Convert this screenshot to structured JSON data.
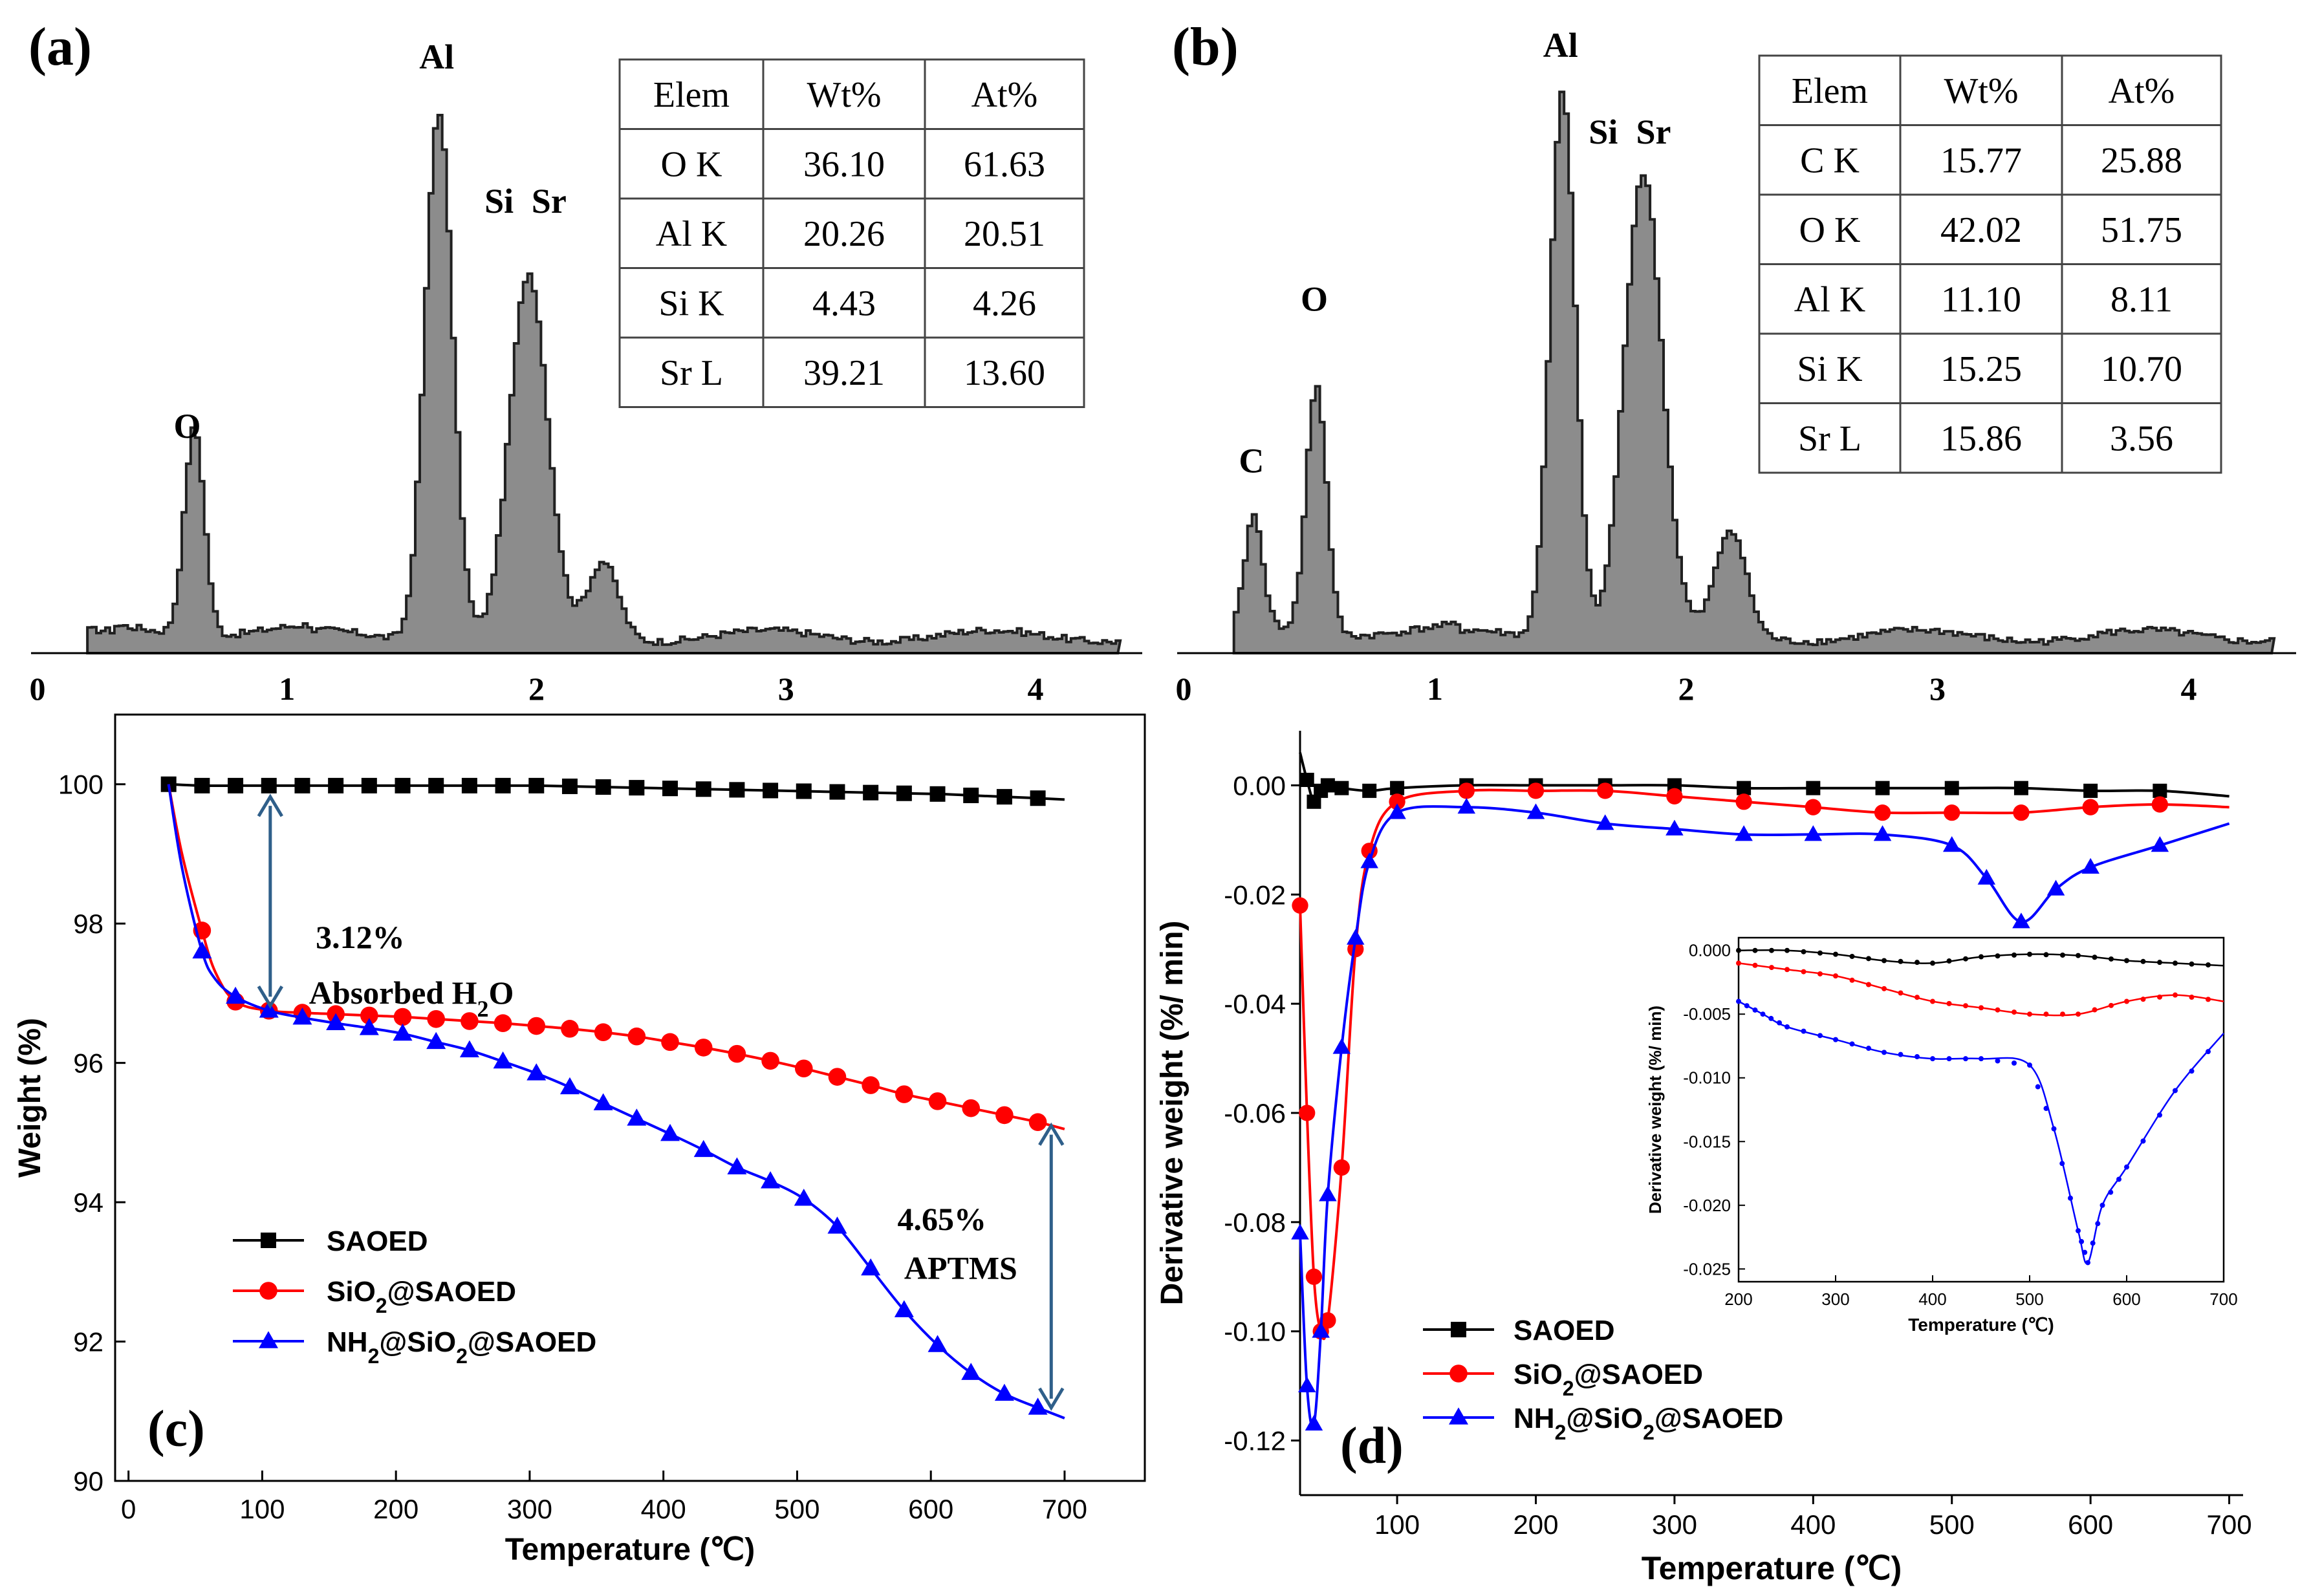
{
  "chart_data": [
    {
      "panel": "(a)",
      "type": "area",
      "xticks": [
        "0",
        "1",
        "2",
        "3",
        "4"
      ],
      "xlim": [
        0,
        4.35
      ],
      "peak_labels": [
        {
          "text": "O",
          "x": 0.6,
          "y": 0.36
        },
        {
          "text": "Al",
          "x": 1.6,
          "y": 1.0
        },
        {
          "text": "Si",
          "x": 1.85,
          "y": 0.75
        },
        {
          "text": "Sr",
          "x": 2.05,
          "y": 0.75
        }
      ],
      "peaks": [
        {
          "x": 0.62,
          "h": 0.36,
          "w": 0.04
        },
        {
          "x": 1.6,
          "h": 0.92,
          "w": 0.055
        },
        {
          "x": 1.96,
          "h": 0.62,
          "w": 0.075
        },
        {
          "x": 2.26,
          "h": 0.13,
          "w": 0.06
        }
      ],
      "table": {
        "headers": [
          "Elem",
          "Wt%",
          "At%"
        ],
        "rows": [
          [
            "O K",
            "36.10",
            "61.63"
          ],
          [
            "Al K",
            "20.26",
            "20.51"
          ],
          [
            "Si K",
            "4.43",
            "4.26"
          ],
          [
            "Sr L",
            "39.21",
            "13.60"
          ]
        ]
      }
    },
    {
      "panel": "(b)",
      "type": "area",
      "xticks": [
        "0",
        "1",
        "2",
        "3",
        "4"
      ],
      "xlim": [
        0,
        4.35
      ],
      "peak_labels": [
        {
          "text": "C",
          "x": 0.27,
          "y": 0.3
        },
        {
          "text": "O",
          "x": 0.52,
          "y": 0.58
        },
        {
          "text": "Al",
          "x": 1.5,
          "y": 1.02
        },
        {
          "text": "Si",
          "x": 1.67,
          "y": 0.87
        },
        {
          "text": "Sr",
          "x": 1.87,
          "y": 0.87
        }
      ],
      "peaks": [
        {
          "x": 0.27,
          "h": 0.2,
          "w": 0.035
        },
        {
          "x": 0.52,
          "h": 0.43,
          "w": 0.04
        },
        {
          "x": 1.5,
          "h": 0.95,
          "w": 0.05
        },
        {
          "x": 1.82,
          "h": 0.8,
          "w": 0.075
        },
        {
          "x": 2.17,
          "h": 0.18,
          "w": 0.06
        }
      ],
      "table": {
        "headers": [
          "Elem",
          "Wt%",
          "At%"
        ],
        "rows": [
          [
            "C K",
            "15.77",
            "25.88"
          ],
          [
            "O K",
            "42.02",
            "51.75"
          ],
          [
            "Al K",
            "11.10",
            "8.11"
          ],
          [
            "Si K",
            "15.25",
            "10.70"
          ],
          [
            "Sr L",
            "15.86",
            "3.56"
          ]
        ]
      }
    },
    {
      "panel": "(c)",
      "type": "line",
      "xlabel": "Temperature (℃)",
      "ylabel": "Weight (%)",
      "xlim": [
        -10,
        760
      ],
      "ylim": [
        90,
        101
      ],
      "xticks": [
        0,
        100,
        200,
        300,
        400,
        500,
        600,
        700
      ],
      "yticks": [
        90,
        92,
        94,
        96,
        98,
        100
      ],
      "series": [
        {
          "name": "SAOED",
          "color": "#000000",
          "marker": "square",
          "x": [
            30,
            55,
            80,
            105,
            130,
            155,
            180,
            205,
            230,
            255,
            280,
            305,
            330,
            355,
            380,
            405,
            430,
            455,
            480,
            505,
            530,
            555,
            580,
            605,
            630,
            655,
            680,
            700
          ],
          "y": [
            100.0,
            99.98,
            99.98,
            99.98,
            99.98,
            99.98,
            99.98,
            99.98,
            99.98,
            99.98,
            99.98,
            99.98,
            99.97,
            99.96,
            99.95,
            99.94,
            99.93,
            99.92,
            99.91,
            99.9,
            99.89,
            99.88,
            99.87,
            99.86,
            99.84,
            99.82,
            99.8,
            99.78
          ]
        },
        {
          "name": "SiO2@SAOED",
          "color": "#ff0000",
          "marker": "circle",
          "x": [
            30,
            40,
            55,
            65,
            80,
            105,
            130,
            155,
            180,
            205,
            230,
            255,
            280,
            305,
            330,
            355,
            380,
            405,
            430,
            455,
            480,
            505,
            530,
            555,
            580,
            605,
            630,
            655,
            680,
            700
          ],
          "y": [
            100.0,
            99.0,
            97.9,
            97.3,
            96.88,
            96.75,
            96.72,
            96.7,
            96.68,
            96.66,
            96.63,
            96.6,
            96.57,
            96.53,
            96.49,
            96.44,
            96.38,
            96.3,
            96.22,
            96.13,
            96.03,
            95.92,
            95.8,
            95.68,
            95.55,
            95.45,
            95.35,
            95.25,
            95.15,
            95.05
          ]
        },
        {
          "name": "NH2@SiO2@SAOED",
          "color": "#0000ff",
          "marker": "triangle",
          "x": [
            30,
            40,
            55,
            65,
            80,
            105,
            130,
            155,
            180,
            205,
            230,
            255,
            280,
            305,
            330,
            355,
            380,
            405,
            430,
            455,
            480,
            505,
            530,
            555,
            580,
            605,
            630,
            655,
            680,
            700
          ],
          "y": [
            100.0,
            98.8,
            97.6,
            97.2,
            96.95,
            96.75,
            96.65,
            96.57,
            96.5,
            96.42,
            96.3,
            96.18,
            96.02,
            95.85,
            95.65,
            95.42,
            95.2,
            94.98,
            94.75,
            94.5,
            94.3,
            94.05,
            93.65,
            93.05,
            92.45,
            91.95,
            91.55,
            91.25,
            91.05,
            90.9
          ]
        }
      ],
      "annotations": [
        {
          "text": "3.12%",
          "x": 140,
          "y": 97.65
        },
        {
          "text": "Absorbed  H2O",
          "x": 135,
          "y": 96.85
        },
        {
          "text": "4.65%",
          "x": 575,
          "y": 93.6
        },
        {
          "text": "APTMS",
          "x": 580,
          "y": 92.9
        }
      ],
      "panel_label": "(c)"
    },
    {
      "panel": "(d)",
      "type": "line",
      "xlabel": "Temperature (℃)",
      "ylabel": "Derivative weight (%/ min)",
      "xlim": [
        30,
        710
      ],
      "ylim": [
        -0.13,
        0.01
      ],
      "xticks": [
        100,
        200,
        300,
        400,
        500,
        600,
        700
      ],
      "yticks": [
        "0.00",
        "-0.02",
        "-0.04",
        "-0.06",
        "-0.08",
        "-0.10",
        "-0.12"
      ],
      "series": [
        {
          "name": "SAOED",
          "color": "#000000",
          "marker": "square",
          "x": [
            30,
            35,
            40,
            45,
            50,
            60,
            80,
            100,
            150,
            200,
            250,
            300,
            350,
            400,
            450,
            500,
            550,
            600,
            650,
            700
          ],
          "y": [
            0.006,
            0.001,
            -0.003,
            -0.001,
            0.0,
            -0.0005,
            -0.001,
            -0.0005,
            0.0,
            0.0,
            0.0,
            0.0,
            -0.0005,
            -0.0005,
            -0.0005,
            -0.0005,
            -0.0005,
            -0.001,
            -0.001,
            -0.002
          ]
        },
        {
          "name": "SiO2@SAOED",
          "color": "#ff0000",
          "marker": "circle",
          "x": [
            30,
            35,
            40,
            45,
            50,
            60,
            70,
            80,
            100,
            150,
            200,
            250,
            300,
            350,
            400,
            450,
            500,
            550,
            600,
            650,
            700
          ],
          "y": [
            -0.022,
            -0.06,
            -0.09,
            -0.1,
            -0.098,
            -0.07,
            -0.03,
            -0.012,
            -0.003,
            -0.001,
            -0.001,
            -0.001,
            -0.002,
            -0.003,
            -0.004,
            -0.005,
            -0.005,
            -0.005,
            -0.004,
            -0.0035,
            -0.004
          ]
        },
        {
          "name": "NH2@SiO2@SAOED",
          "color": "#0000ff",
          "marker": "triangle",
          "x": [
            30,
            35,
            40,
            45,
            50,
            60,
            70,
            80,
            100,
            150,
            200,
            250,
            300,
            350,
            400,
            450,
            500,
            525,
            550,
            575,
            600,
            650,
            700
          ],
          "y": [
            -0.082,
            -0.11,
            -0.117,
            -0.1,
            -0.075,
            -0.048,
            -0.028,
            -0.014,
            -0.005,
            -0.004,
            -0.005,
            -0.007,
            -0.008,
            -0.009,
            -0.009,
            -0.009,
            -0.011,
            -0.017,
            -0.025,
            -0.019,
            -0.015,
            -0.011,
            -0.007
          ]
        }
      ],
      "panel_label": "(d)",
      "inset": {
        "xlabel": "Temperature (℃)",
        "ylabel": "Derivative weight (%/ min)",
        "xlim": [
          200,
          700
        ],
        "ylim": [
          -0.026,
          0.001
        ],
        "xticks": [
          200,
          300,
          400,
          500,
          600,
          700
        ],
        "yticks": [
          "0.000",
          "-0.005",
          "-0.010",
          "-0.015",
          "-0.020",
          "-0.025"
        ],
        "series": [
          {
            "name": "SAOED",
            "color": "#000000",
            "x": [
              200,
              250,
              300,
              350,
              400,
              450,
              500,
              550,
              600,
              650,
              700
            ],
            "y": [
              0.0,
              0.0,
              -0.0003,
              -0.0008,
              -0.001,
              -0.0005,
              -0.0003,
              -0.0004,
              -0.0008,
              -0.001,
              -0.0012
            ]
          },
          {
            "name": "SiO2@SAOED",
            "color": "#ff0000",
            "x": [
              200,
              250,
              300,
              350,
              400,
              450,
              500,
              550,
              600,
              650,
              700
            ],
            "y": [
              -0.001,
              -0.0015,
              -0.002,
              -0.003,
              -0.004,
              -0.0045,
              -0.005,
              -0.005,
              -0.004,
              -0.0035,
              -0.004
            ]
          },
          {
            "name": "NH2@SiO2@SAOED",
            "color": "#0000ff",
            "x": [
              200,
              225,
              250,
              300,
              350,
              400,
              450,
              500,
              525,
              550,
              560,
              575,
              600,
              650,
              700
            ],
            "y": [
              -0.004,
              -0.005,
              -0.006,
              -0.007,
              -0.008,
              -0.0085,
              -0.0085,
              -0.009,
              -0.014,
              -0.022,
              -0.0245,
              -0.02,
              -0.017,
              -0.011,
              -0.0065
            ]
          }
        ]
      }
    }
  ],
  "legend": {
    "items": [
      {
        "text": "SAOED",
        "color": "#000000",
        "marker": "square"
      },
      {
        "text": "SiO2@SAOED",
        "color": "#ff0000",
        "marker": "circle"
      },
      {
        "text": "NH2@SiO2@SAOED",
        "color": "#0000ff",
        "marker": "triangle"
      }
    ]
  },
  "arrow_color": "#2f5f8a"
}
